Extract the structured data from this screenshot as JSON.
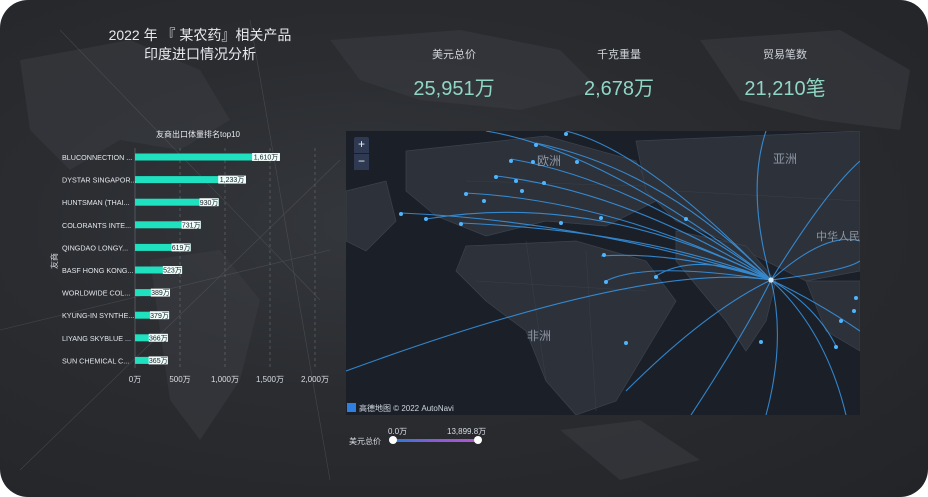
{
  "header": {
    "title_line1": "2022 年 『 某农药』相关产品",
    "title_line2": "印度进口情况分析"
  },
  "kpis": [
    {
      "label": "美元总价",
      "value": "25,951万"
    },
    {
      "label": "千克重量",
      "value": "2,678万"
    },
    {
      "label": "贸易笔数",
      "value": "21,210笔"
    }
  ],
  "colors": {
    "bar": "#1fe0bf",
    "bar_label_bg": "#ffffff",
    "accent_line": "#2aa7ff",
    "map_bg": "#1b2028"
  },
  "chart_data": {
    "type": "bar",
    "orientation": "horizontal",
    "title": "友商出口体量排名top10",
    "ylabel": "友商",
    "categories": [
      "BLUCONNECTION ...",
      "DYSTAR SINGAPOR...",
      "HUNTSMAN (THAI...",
      "COLORANTS INTE...",
      "QINGDAO LONGY...",
      "BASF HONG KONG...",
      "WORLDWIDE COL...",
      "KYUNG-IN SYNTHE...",
      "LIYANG SKYBLUE ...",
      "SUN CHEMICAL C..."
    ],
    "values": [
      1610,
      1233,
      930,
      731,
      619,
      523,
      389,
      379,
      366,
      365
    ],
    "value_labels": [
      "1,610万",
      "1,233万",
      "930万",
      "731万",
      "619万",
      "523万",
      "389万",
      "379万",
      "366万",
      "365万"
    ],
    "xlim": [
      0,
      2000
    ],
    "xticks": [
      0,
      500,
      1000,
      1500,
      2000
    ],
    "xtick_labels": [
      "0万",
      "500万",
      "1,000万",
      "1,500万",
      "2,000万"
    ],
    "grid": true
  },
  "map": {
    "zoom_in": "+",
    "zoom_out": "−",
    "labels": {
      "europe": "欧洲",
      "asia": "亚洲",
      "china": "中华人民",
      "africa": "非洲"
    },
    "attribution": "高德地图 © 2022 AutoNavi"
  },
  "legend": {
    "label": "美元总价",
    "min_label": "0.0万",
    "max_label": "13,899.8万",
    "min": 0.0,
    "max": 13899.8
  }
}
